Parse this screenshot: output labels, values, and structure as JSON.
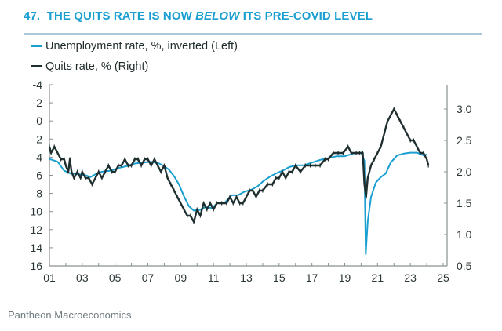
{
  "title": {
    "number": "47.",
    "pre": "THE QUITS RATE IS NOW ",
    "emph": "BELOW",
    "post": " ITS PRE-COVID LEVEL"
  },
  "legend": [
    {
      "label": "Unemployment rate, %, inverted (Left)",
      "color": "#1a9fd0"
    },
    {
      "label": "Quits rate, % (Right)",
      "color": "#1f2f2f"
    }
  ],
  "footer": "Pantheon Macroeconomics",
  "chart_data": {
    "type": "line",
    "title": "47. THE QUITS RATE IS NOW BELOW ITS PRE-COVID LEVEL",
    "xlabel": "",
    "x_range": [
      2001,
      2025
    ],
    "x_ticks": [
      "01",
      "03",
      "05",
      "07",
      "09",
      "11",
      "13",
      "15",
      "17",
      "19",
      "21",
      "23",
      "25"
    ],
    "left_axis": {
      "label": "Unemployment rate, %, inverted",
      "range": [
        -4,
        16
      ],
      "inverted": true,
      "ticks": [
        "-4",
        "-2",
        "0",
        "2",
        "4",
        "6",
        "8",
        "10",
        "12",
        "14",
        "16"
      ]
    },
    "right_axis": {
      "label": "Quits rate, %",
      "range": [
        0.5,
        3.33
      ],
      "ticks": [
        "3.0",
        "2.5",
        "2.0",
        "1.5",
        "1.0",
        "0.5"
      ]
    },
    "legend_position": "top-left",
    "grid": false,
    "series": [
      {
        "name": "Unemployment rate, %, inverted (Left)",
        "axis": "left",
        "color": "#1a9fd0",
        "points": [
          [
            2001.0,
            4.2
          ],
          [
            2001.5,
            4.5
          ],
          [
            2001.9,
            5.5
          ],
          [
            2002.3,
            5.8
          ],
          [
            2002.8,
            5.9
          ],
          [
            2003.2,
            6.0
          ],
          [
            2003.5,
            6.2
          ],
          [
            2003.8,
            5.9
          ],
          [
            2004.2,
            5.6
          ],
          [
            2004.7,
            5.5
          ],
          [
            2005.2,
            5.2
          ],
          [
            2005.7,
            5.0
          ],
          [
            2006.2,
            4.7
          ],
          [
            2006.7,
            4.6
          ],
          [
            2007.2,
            4.5
          ],
          [
            2007.7,
            4.7
          ],
          [
            2008.0,
            5.0
          ],
          [
            2008.3,
            5.4
          ],
          [
            2008.6,
            6.1
          ],
          [
            2008.9,
            7.0
          ],
          [
            2009.2,
            8.3
          ],
          [
            2009.5,
            9.4
          ],
          [
            2009.8,
            9.9
          ],
          [
            2010.2,
            9.8
          ],
          [
            2010.5,
            9.5
          ],
          [
            2010.9,
            9.6
          ],
          [
            2011.3,
            9.0
          ],
          [
            2011.7,
            9.0
          ],
          [
            2012.1,
            8.2
          ],
          [
            2012.5,
            8.2
          ],
          [
            2012.9,
            7.8
          ],
          [
            2013.3,
            7.6
          ],
          [
            2013.7,
            7.2
          ],
          [
            2014.0,
            6.7
          ],
          [
            2014.4,
            6.2
          ],
          [
            2014.8,
            5.8
          ],
          [
            2015.2,
            5.5
          ],
          [
            2015.6,
            5.1
          ],
          [
            2016.0,
            4.9
          ],
          [
            2016.5,
            4.9
          ],
          [
            2017.0,
            4.6
          ],
          [
            2017.5,
            4.3
          ],
          [
            2018.0,
            4.1
          ],
          [
            2018.5,
            3.9
          ],
          [
            2019.0,
            3.9
          ],
          [
            2019.5,
            3.6
          ],
          [
            2020.0,
            3.5
          ],
          [
            2020.2,
            4.4
          ],
          [
            2020.28,
            14.7
          ],
          [
            2020.4,
            11.1
          ],
          [
            2020.6,
            8.4
          ],
          [
            2020.9,
            6.8
          ],
          [
            2021.2,
            6.2
          ],
          [
            2021.5,
            5.8
          ],
          [
            2021.8,
            4.6
          ],
          [
            2022.2,
            3.8
          ],
          [
            2022.6,
            3.6
          ],
          [
            2023.0,
            3.5
          ],
          [
            2023.4,
            3.5
          ],
          [
            2023.8,
            3.8
          ],
          [
            2024.0,
            3.7
          ]
        ]
      },
      {
        "name": "Quits rate, % (Right)",
        "axis": "right",
        "color": "#1f2f2f",
        "points": [
          [
            2001.0,
            2.4
          ],
          [
            2001.1,
            2.3
          ],
          [
            2001.3,
            2.4
          ],
          [
            2001.5,
            2.3
          ],
          [
            2001.7,
            2.2
          ],
          [
            2001.9,
            2.2
          ],
          [
            2002.0,
            2.1
          ],
          [
            2002.15,
            2.0
          ],
          [
            2002.25,
            2.2
          ],
          [
            2002.35,
            2.0
          ],
          [
            2002.5,
            1.9
          ],
          [
            2002.7,
            2.0
          ],
          [
            2002.9,
            1.9
          ],
          [
            2003.0,
            2.0
          ],
          [
            2003.2,
            1.9
          ],
          [
            2003.4,
            1.9
          ],
          [
            2003.6,
            1.8
          ],
          [
            2003.8,
            1.9
          ],
          [
            2004.0,
            2.0
          ],
          [
            2004.2,
            1.9
          ],
          [
            2004.4,
            2.0
          ],
          [
            2004.6,
            2.1
          ],
          [
            2004.8,
            2.0
          ],
          [
            2005.0,
            2.0
          ],
          [
            2005.2,
            2.1
          ],
          [
            2005.4,
            2.1
          ],
          [
            2005.6,
            2.2
          ],
          [
            2005.8,
            2.1
          ],
          [
            2006.0,
            2.1
          ],
          [
            2006.2,
            2.2
          ],
          [
            2006.4,
            2.2
          ],
          [
            2006.6,
            2.1
          ],
          [
            2006.8,
            2.2
          ],
          [
            2007.0,
            2.2
          ],
          [
            2007.2,
            2.1
          ],
          [
            2007.4,
            2.2
          ],
          [
            2007.6,
            2.1
          ],
          [
            2007.8,
            2.0
          ],
          [
            2008.0,
            2.1
          ],
          [
            2008.2,
            1.9
          ],
          [
            2008.4,
            1.8
          ],
          [
            2008.6,
            1.7
          ],
          [
            2008.8,
            1.6
          ],
          [
            2009.0,
            1.5
          ],
          [
            2009.2,
            1.4
          ],
          [
            2009.4,
            1.3
          ],
          [
            2009.6,
            1.3
          ],
          [
            2009.8,
            1.2
          ],
          [
            2010.0,
            1.4
          ],
          [
            2010.2,
            1.3
          ],
          [
            2010.4,
            1.5
          ],
          [
            2010.6,
            1.4
          ],
          [
            2010.8,
            1.5
          ],
          [
            2011.0,
            1.4
          ],
          [
            2011.2,
            1.5
          ],
          [
            2011.5,
            1.5
          ],
          [
            2011.8,
            1.5
          ],
          [
            2012.0,
            1.6
          ],
          [
            2012.2,
            1.5
          ],
          [
            2012.4,
            1.6
          ],
          [
            2012.6,
            1.5
          ],
          [
            2012.8,
            1.5
          ],
          [
            2013.0,
            1.6
          ],
          [
            2013.2,
            1.7
          ],
          [
            2013.4,
            1.7
          ],
          [
            2013.6,
            1.6
          ],
          [
            2013.8,
            1.7
          ],
          [
            2014.0,
            1.7
          ],
          [
            2014.3,
            1.8
          ],
          [
            2014.6,
            1.8
          ],
          [
            2014.8,
            1.9
          ],
          [
            2015.0,
            1.9
          ],
          [
            2015.2,
            2.0
          ],
          [
            2015.4,
            1.9
          ],
          [
            2015.6,
            2.0
          ],
          [
            2015.8,
            2.0
          ],
          [
            2016.0,
            2.1
          ],
          [
            2016.3,
            2.0
          ],
          [
            2016.6,
            2.1
          ],
          [
            2016.9,
            2.1
          ],
          [
            2017.2,
            2.1
          ],
          [
            2017.5,
            2.1
          ],
          [
            2017.8,
            2.2
          ],
          [
            2018.0,
            2.2
          ],
          [
            2018.3,
            2.3
          ],
          [
            2018.6,
            2.3
          ],
          [
            2018.9,
            2.3
          ],
          [
            2019.2,
            2.4
          ],
          [
            2019.4,
            2.3
          ],
          [
            2019.7,
            2.3
          ],
          [
            2019.9,
            2.3
          ],
          [
            2020.1,
            2.3
          ],
          [
            2020.2,
            1.8
          ],
          [
            2020.3,
            1.6
          ],
          [
            2020.4,
            1.9
          ],
          [
            2020.6,
            2.1
          ],
          [
            2020.8,
            2.2
          ],
          [
            2021.0,
            2.3
          ],
          [
            2021.2,
            2.4
          ],
          [
            2021.4,
            2.6
          ],
          [
            2021.6,
            2.8
          ],
          [
            2021.8,
            2.9
          ],
          [
            2022.0,
            3.0
          ],
          [
            2022.2,
            2.9
          ],
          [
            2022.4,
            2.8
          ],
          [
            2022.6,
            2.7
          ],
          [
            2022.8,
            2.6
          ],
          [
            2023.0,
            2.5
          ],
          [
            2023.2,
            2.5
          ],
          [
            2023.4,
            2.4
          ],
          [
            2023.6,
            2.3
          ],
          [
            2023.8,
            2.3
          ],
          [
            2024.0,
            2.2
          ],
          [
            2024.1,
            2.1
          ]
        ]
      }
    ]
  }
}
